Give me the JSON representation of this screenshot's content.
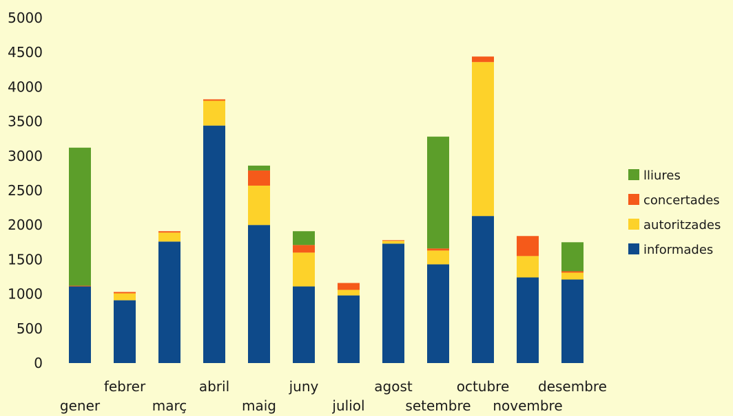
{
  "chart_data": {
    "type": "bar",
    "stacked": true,
    "categories": [
      "gener",
      "febrer",
      "març",
      "abril",
      "maig",
      "juny",
      "juliol",
      "agost",
      "setembre",
      "octubre",
      "novembre",
      "desembre"
    ],
    "series": [
      {
        "name": "informades",
        "color": "#0e4a8a",
        "values": [
          1110,
          910,
          1760,
          3440,
          2000,
          1110,
          980,
          1730,
          1430,
          2130,
          1240,
          1210
        ]
      },
      {
        "name": "autoritzades",
        "color": "#fdd22a",
        "values": [
          0,
          100,
          130,
          360,
          570,
          490,
          80,
          40,
          200,
          2230,
          310,
          100
        ]
      },
      {
        "name": "concertades",
        "color": "#f55a1a",
        "values": [
          10,
          20,
          20,
          20,
          220,
          110,
          100,
          10,
          30,
          80,
          290,
          20
        ]
      },
      {
        "name": "lliures",
        "color": "#5c9e2a",
        "values": [
          2000,
          0,
          0,
          0,
          70,
          200,
          0,
          0,
          1620,
          0,
          0,
          420
        ]
      }
    ],
    "legend_order": [
      "lliures",
      "concertades",
      "autoritzades",
      "informades"
    ],
    "y_ticks": [
      "0",
      "500",
      "1000",
      "1500",
      "2000",
      "2500",
      "3000",
      "3500",
      "4000",
      "4500",
      "5000"
    ],
    "ylim": [
      0,
      5000
    ],
    "grid": false,
    "legend_position": "right",
    "title": "",
    "xlabel": "",
    "ylabel": ""
  }
}
